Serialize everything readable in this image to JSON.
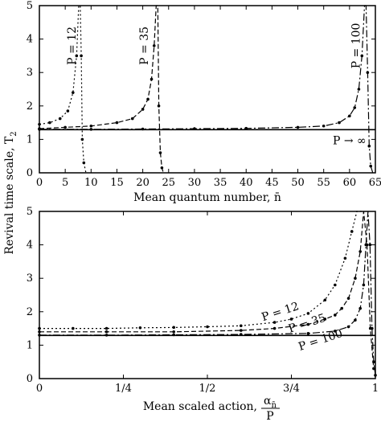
{
  "chart_data": [
    {
      "type": "line",
      "panel": "top",
      "xlabel": "Mean quantum number, n̄",
      "ylabel": "Revival time scale, T",
      "ylabel_subscript": "2",
      "xlim": [
        0,
        65
      ],
      "ylim": [
        0,
        5
      ],
      "xticks": [
        0,
        5,
        10,
        15,
        20,
        25,
        30,
        35,
        40,
        45,
        50,
        55,
        60,
        65
      ],
      "yticks": [
        0,
        1,
        2,
        3,
        4,
        5
      ],
      "grid": false,
      "series": [
        {
          "name": "P = 12",
          "label_pos": {
            "x": 7,
            "y": 3.8
          },
          "x": [
            0,
            2,
            4,
            5.5,
            6.5,
            7.2,
            7.6,
            7.9,
            8.1,
            8.3,
            8.6,
            9
          ],
          "y": [
            1.45,
            1.5,
            1.62,
            1.85,
            2.4,
            3.5,
            5.0,
            5.0,
            3.5,
            1.0,
            0.3,
            0
          ]
        },
        {
          "name": "P = 35",
          "label_pos": {
            "x": 21,
            "y": 3.8
          },
          "x": [
            0,
            5,
            10,
            15,
            18,
            20,
            21,
            21.7,
            22.2,
            22.6,
            22.9,
            23.1,
            23.4,
            23.7,
            24
          ],
          "y": [
            1.32,
            1.36,
            1.4,
            1.5,
            1.62,
            1.9,
            2.2,
            2.8,
            3.8,
            5.0,
            5.0,
            2.0,
            0.6,
            0.15,
            0
          ]
        },
        {
          "name": "P = 100",
          "label_pos": {
            "x": 62,
            "y": 3.8
          },
          "x": [
            0,
            10,
            20,
            30,
            40,
            50,
            55,
            58,
            60,
            61,
            61.8,
            62.4,
            62.9,
            63.2,
            63.5,
            63.8,
            64.1,
            64.5
          ],
          "y": [
            1.3,
            1.3,
            1.31,
            1.32,
            1.33,
            1.36,
            1.4,
            1.5,
            1.7,
            1.95,
            2.5,
            3.5,
            5.0,
            5.0,
            3.0,
            0.8,
            0.2,
            0
          ]
        },
        {
          "name": "P → ∞",
          "label_pos": {
            "x": 60,
            "y": 0.85
          },
          "x": [
            0,
            65
          ],
          "y": [
            1.29,
            1.29
          ]
        }
      ]
    },
    {
      "type": "line",
      "panel": "bottom",
      "xlabel": "Mean scaled action,",
      "xlabel_fraction": {
        "numerator": "α",
        "numerator_subscript": "n̄",
        "denominator": "P"
      },
      "xlim": [
        0,
        1
      ],
      "ylim": [
        0,
        5
      ],
      "xticks": [
        0,
        0.25,
        0.5,
        0.75,
        1
      ],
      "xticklabels": [
        "0",
        "1/4",
        "1/2",
        "3/4",
        "1"
      ],
      "yticks": [
        0,
        1,
        2,
        3,
        4,
        5
      ],
      "grid": false,
      "series": [
        {
          "name": "P = 12",
          "label_pos": {
            "x": 0.72,
            "y": 1.9
          },
          "x": [
            0,
            0.1,
            0.2,
            0.3,
            0.4,
            0.5,
            0.6,
            0.7,
            0.75,
            0.8,
            0.85,
            0.88,
            0.91,
            0.93,
            0.945,
            0.96
          ],
          "y": [
            1.5,
            1.5,
            1.5,
            1.52,
            1.53,
            1.55,
            1.58,
            1.68,
            1.78,
            1.95,
            2.35,
            2.8,
            3.6,
            4.4,
            5.0,
            5.0
          ]
        },
        {
          "name": "P = 35",
          "label_pos": {
            "x": 0.8,
            "y": 1.55
          },
          "x": [
            0,
            0.2,
            0.4,
            0.6,
            0.7,
            0.8,
            0.85,
            0.88,
            0.9,
            0.92,
            0.94,
            0.955,
            0.965,
            0.975,
            0.985,
            0.995
          ],
          "y": [
            1.4,
            1.4,
            1.4,
            1.44,
            1.5,
            1.62,
            1.78,
            1.9,
            2.1,
            2.4,
            3.0,
            3.8,
            5.0,
            4.0,
            1.5,
            0.3
          ]
        },
        {
          "name": "P = 100",
          "label_pos": {
            "x": 0.84,
            "y": 1.05
          },
          "x": [
            0,
            0.2,
            0.4,
            0.6,
            0.8,
            0.88,
            0.92,
            0.94,
            0.955,
            0.965,
            0.972,
            0.978,
            0.984,
            0.99,
            0.995,
            1.0
          ],
          "y": [
            1.3,
            1.3,
            1.31,
            1.32,
            1.35,
            1.42,
            1.55,
            1.75,
            2.1,
            2.8,
            4.0,
            5.0,
            4.0,
            1.5,
            0.5,
            0.1
          ]
        },
        {
          "name": "P → ∞",
          "x": [
            0,
            1
          ],
          "y": [
            1.29,
            1.29
          ]
        }
      ]
    }
  ]
}
